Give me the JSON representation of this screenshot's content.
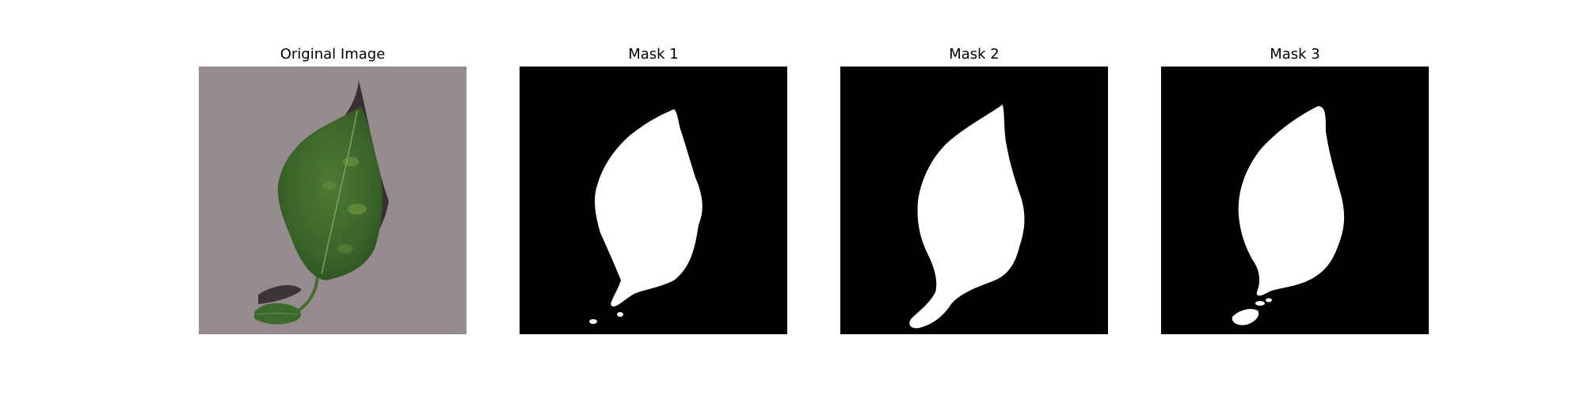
{
  "figure": {
    "panels": [
      {
        "title": "Original Image",
        "kind": "photo"
      },
      {
        "title": "Mask 1",
        "kind": "mask"
      },
      {
        "title": "Mask 2",
        "kind": "mask"
      },
      {
        "title": "Mask 3",
        "kind": "mask"
      }
    ]
  },
  "colors": {
    "background": "#ffffff",
    "mask_background": "#000000",
    "mask_foreground": "#ffffff",
    "carpet": "#9c9194",
    "leaf": "#3b6a2c",
    "leaf_highlight": "#6e8e3e",
    "shadow": "#2c2628"
  }
}
